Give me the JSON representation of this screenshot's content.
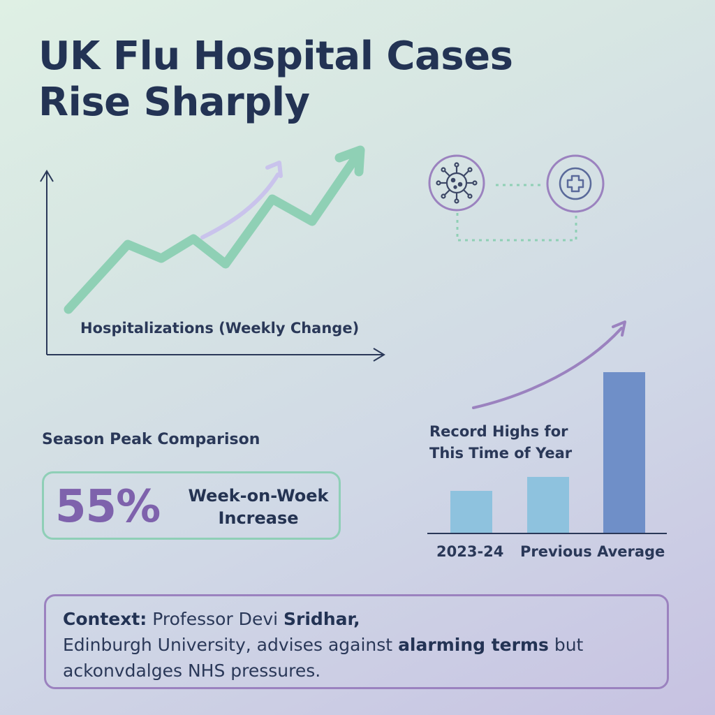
{
  "title": {
    "line1": "UK Flu Hospital Cases",
    "line2": "Rise Sharply"
  },
  "line_chart": {
    "label": "Hospitalizations (Weekly Change)"
  },
  "icons": {
    "virus": "virus-icon",
    "hospital": "medical-cross-icon"
  },
  "stat": {
    "section_label": "Season Peak Comparison",
    "value": "55%",
    "text": "Week-on-Woek Increase"
  },
  "bars": {
    "label": "Record Highs for This Time of Year",
    "tick1": "2023-24",
    "tick2": "Previous Average"
  },
  "context": {
    "lead": "Context:",
    "name_pre": "Professor D",
    "name_mid": "evi ",
    "name_bold": "Sridhar,",
    "line2_pre": "Edinburgh University, advises against ",
    "line2_bold": "alarming terms",
    "line2_post": " but",
    "line3": "ackonvdalges NHS pressures."
  },
  "colors": {
    "title": "#233354",
    "green_line": "#8fd0b5",
    "lavender_arrow": "#c9c3ec",
    "purple": "#9b82bf",
    "stat_value": "#7e62ac",
    "bar_light": "#8ec2de",
    "bar_dark": "#6f8fc8"
  },
  "chart_data": {
    "type": "bar",
    "categories": [
      "2023-24",
      "",
      ""
    ],
    "values": [
      60,
      80,
      230
    ],
    "ylim": [
      0,
      240
    ],
    "title": "Record Highs for This Time of Year",
    "xlabel": "",
    "ylabel": "",
    "grid": false
  }
}
